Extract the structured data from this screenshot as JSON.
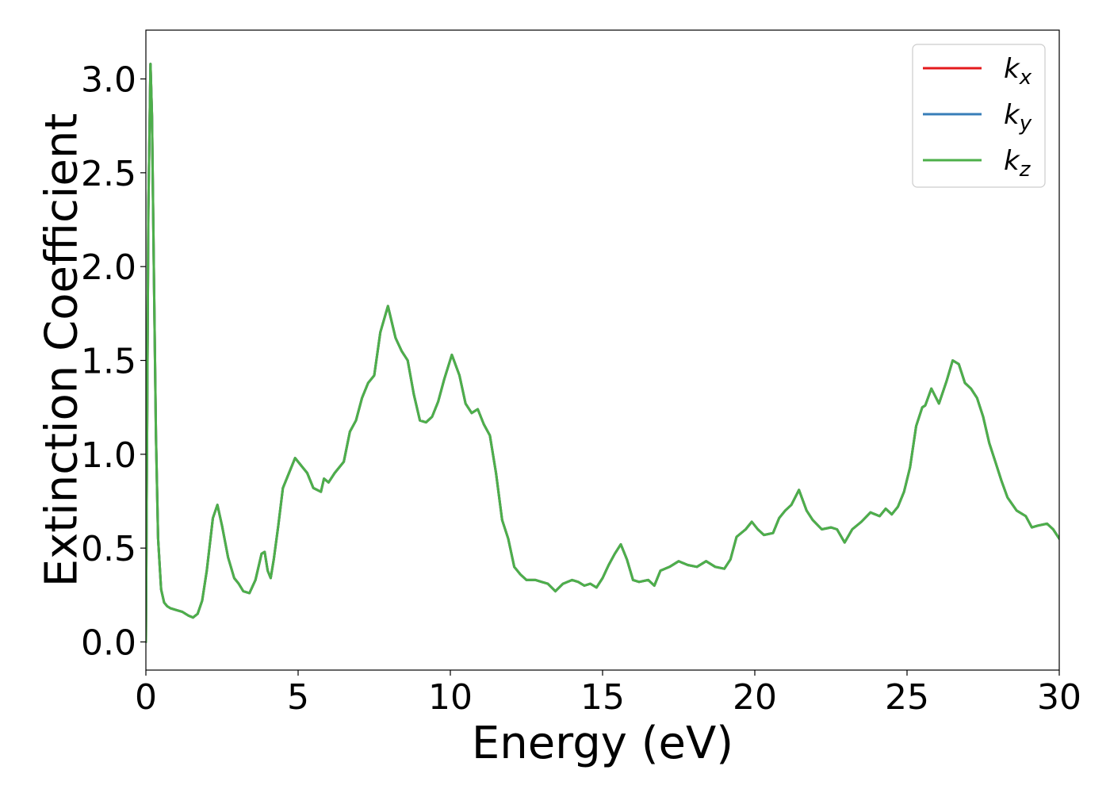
{
  "chart_data": {
    "type": "line",
    "xlabel": "Energy (eV)",
    "ylabel": "Extinction Coefficient",
    "xlim": [
      0,
      30
    ],
    "ylim": [
      -0.15,
      3.26
    ],
    "xticks": [
      0,
      5,
      10,
      15,
      20,
      25,
      30
    ],
    "xtick_labels": [
      "0",
      "5",
      "10",
      "15",
      "20",
      "25",
      "30"
    ],
    "yticks": [
      0.0,
      0.5,
      1.0,
      1.5,
      2.0,
      2.5,
      3.0
    ],
    "ytick_labels": [
      "0.0",
      "0.5",
      "1.0",
      "1.5",
      "2.0",
      "2.5",
      "3.0"
    ],
    "grid": false,
    "legend_position": "top-right",
    "x": [
      0.0,
      0.08,
      0.15,
      0.2,
      0.26,
      0.33,
      0.4,
      0.5,
      0.6,
      0.7,
      0.8,
      1.0,
      1.2,
      1.4,
      1.55,
      1.7,
      1.85,
      2.0,
      2.2,
      2.35,
      2.5,
      2.7,
      2.9,
      3.05,
      3.2,
      3.4,
      3.6,
      3.8,
      3.9,
      4.0,
      4.1,
      4.2,
      4.35,
      4.5,
      4.7,
      4.9,
      5.1,
      5.3,
      5.5,
      5.75,
      5.85,
      6.0,
      6.2,
      6.5,
      6.7,
      6.9,
      7.1,
      7.3,
      7.5,
      7.7,
      7.95,
      8.2,
      8.4,
      8.6,
      8.8,
      9.0,
      9.2,
      9.4,
      9.6,
      9.8,
      10.05,
      10.3,
      10.5,
      10.7,
      10.9,
      11.1,
      11.3,
      11.5,
      11.7,
      11.9,
      12.1,
      12.3,
      12.5,
      12.8,
      13.0,
      13.2,
      13.45,
      13.7,
      14.0,
      14.2,
      14.4,
      14.6,
      14.8,
      15.0,
      15.2,
      15.4,
      15.6,
      15.8,
      16.0,
      16.2,
      16.5,
      16.7,
      16.9,
      17.2,
      17.5,
      17.8,
      18.1,
      18.4,
      18.7,
      19.0,
      19.2,
      19.4,
      19.7,
      19.9,
      20.1,
      20.3,
      20.6,
      20.8,
      21.0,
      21.2,
      21.45,
      21.7,
      21.9,
      22.2,
      22.5,
      22.7,
      22.95,
      23.2,
      23.5,
      23.8,
      24.1,
      24.3,
      24.5,
      24.7,
      24.9,
      25.1,
      25.3,
      25.5,
      25.6,
      25.8,
      26.05,
      26.3,
      26.5,
      26.7,
      26.9,
      27.1,
      27.3,
      27.5,
      27.7,
      27.9,
      28.1,
      28.3,
      28.6,
      28.9,
      29.1,
      29.3,
      29.6,
      29.8,
      30.0
    ],
    "series": [
      {
        "name": "k_x",
        "color": "#e41a1c",
        "width": 3,
        "values": [
          0.0,
          2.3,
          3.08,
          2.8,
          2.0,
          1.1,
          0.55,
          0.28,
          0.21,
          0.19,
          0.18,
          0.17,
          0.16,
          0.14,
          0.13,
          0.15,
          0.22,
          0.38,
          0.66,
          0.73,
          0.62,
          0.45,
          0.34,
          0.31,
          0.27,
          0.26,
          0.33,
          0.47,
          0.48,
          0.38,
          0.34,
          0.44,
          0.62,
          0.82,
          0.9,
          0.98,
          0.94,
          0.9,
          0.82,
          0.8,
          0.87,
          0.85,
          0.9,
          0.96,
          1.12,
          1.18,
          1.3,
          1.38,
          1.42,
          1.65,
          1.79,
          1.62,
          1.55,
          1.5,
          1.32,
          1.18,
          1.17,
          1.2,
          1.28,
          1.4,
          1.53,
          1.42,
          1.27,
          1.22,
          1.24,
          1.16,
          1.1,
          0.9,
          0.65,
          0.55,
          0.4,
          0.36,
          0.33,
          0.33,
          0.32,
          0.31,
          0.27,
          0.31,
          0.33,
          0.32,
          0.3,
          0.31,
          0.29,
          0.34,
          0.41,
          0.47,
          0.52,
          0.44,
          0.33,
          0.32,
          0.33,
          0.3,
          0.38,
          0.4,
          0.43,
          0.41,
          0.4,
          0.43,
          0.4,
          0.39,
          0.44,
          0.56,
          0.6,
          0.64,
          0.6,
          0.57,
          0.58,
          0.66,
          0.7,
          0.73,
          0.81,
          0.7,
          0.65,
          0.6,
          0.61,
          0.6,
          0.53,
          0.6,
          0.64,
          0.69,
          0.67,
          0.71,
          0.68,
          0.72,
          0.8,
          0.93,
          1.15,
          1.25,
          1.26,
          1.35,
          1.27,
          1.39,
          1.5,
          1.48,
          1.38,
          1.35,
          1.3,
          1.2,
          1.06,
          0.96,
          0.86,
          0.77,
          0.7,
          0.67,
          0.61,
          0.62,
          0.63,
          0.6,
          0.55
        ]
      },
      {
        "name": "k_y",
        "color": "#377eb8",
        "width": 3,
        "values": [
          0.0,
          2.3,
          3.08,
          2.8,
          2.0,
          1.1,
          0.55,
          0.28,
          0.21,
          0.19,
          0.18,
          0.17,
          0.16,
          0.14,
          0.13,
          0.15,
          0.22,
          0.38,
          0.66,
          0.73,
          0.62,
          0.45,
          0.34,
          0.31,
          0.27,
          0.26,
          0.33,
          0.47,
          0.48,
          0.38,
          0.34,
          0.44,
          0.62,
          0.82,
          0.9,
          0.98,
          0.94,
          0.9,
          0.82,
          0.8,
          0.87,
          0.85,
          0.9,
          0.96,
          1.12,
          1.18,
          1.3,
          1.38,
          1.42,
          1.65,
          1.79,
          1.62,
          1.55,
          1.5,
          1.32,
          1.18,
          1.17,
          1.2,
          1.28,
          1.4,
          1.53,
          1.42,
          1.27,
          1.22,
          1.24,
          1.16,
          1.1,
          0.9,
          0.65,
          0.55,
          0.4,
          0.36,
          0.33,
          0.33,
          0.32,
          0.31,
          0.27,
          0.31,
          0.33,
          0.32,
          0.3,
          0.31,
          0.29,
          0.34,
          0.41,
          0.47,
          0.52,
          0.44,
          0.33,
          0.32,
          0.33,
          0.3,
          0.38,
          0.4,
          0.43,
          0.41,
          0.4,
          0.43,
          0.4,
          0.39,
          0.44,
          0.56,
          0.6,
          0.64,
          0.6,
          0.57,
          0.58,
          0.66,
          0.7,
          0.73,
          0.81,
          0.7,
          0.65,
          0.6,
          0.61,
          0.6,
          0.53,
          0.6,
          0.64,
          0.69,
          0.67,
          0.71,
          0.68,
          0.72,
          0.8,
          0.93,
          1.15,
          1.25,
          1.26,
          1.35,
          1.27,
          1.39,
          1.5,
          1.48,
          1.38,
          1.35,
          1.3,
          1.2,
          1.06,
          0.96,
          0.86,
          0.77,
          0.7,
          0.67,
          0.61,
          0.62,
          0.63,
          0.6,
          0.55
        ]
      },
      {
        "name": "k_z",
        "color": "#4daf4a",
        "width": 3,
        "values": [
          0.0,
          2.3,
          3.08,
          2.8,
          2.0,
          1.1,
          0.55,
          0.28,
          0.21,
          0.19,
          0.18,
          0.17,
          0.16,
          0.14,
          0.13,
          0.15,
          0.22,
          0.38,
          0.66,
          0.73,
          0.62,
          0.45,
          0.34,
          0.31,
          0.27,
          0.26,
          0.33,
          0.47,
          0.48,
          0.38,
          0.34,
          0.44,
          0.62,
          0.82,
          0.9,
          0.98,
          0.94,
          0.9,
          0.82,
          0.8,
          0.87,
          0.85,
          0.9,
          0.96,
          1.12,
          1.18,
          1.3,
          1.38,
          1.42,
          1.65,
          1.79,
          1.62,
          1.55,
          1.5,
          1.32,
          1.18,
          1.17,
          1.2,
          1.28,
          1.4,
          1.53,
          1.42,
          1.27,
          1.22,
          1.24,
          1.16,
          1.1,
          0.9,
          0.65,
          0.55,
          0.4,
          0.36,
          0.33,
          0.33,
          0.32,
          0.31,
          0.27,
          0.31,
          0.33,
          0.32,
          0.3,
          0.31,
          0.29,
          0.34,
          0.41,
          0.47,
          0.52,
          0.44,
          0.33,
          0.32,
          0.33,
          0.3,
          0.38,
          0.4,
          0.43,
          0.41,
          0.4,
          0.43,
          0.4,
          0.39,
          0.44,
          0.56,
          0.6,
          0.64,
          0.6,
          0.57,
          0.58,
          0.66,
          0.7,
          0.73,
          0.81,
          0.7,
          0.65,
          0.6,
          0.61,
          0.6,
          0.53,
          0.6,
          0.64,
          0.69,
          0.67,
          0.71,
          0.68,
          0.72,
          0.8,
          0.93,
          1.15,
          1.25,
          1.26,
          1.35,
          1.27,
          1.39,
          1.5,
          1.48,
          1.38,
          1.35,
          1.3,
          1.2,
          1.06,
          0.96,
          0.86,
          0.77,
          0.7,
          0.67,
          0.61,
          0.62,
          0.63,
          0.6,
          0.55
        ]
      }
    ],
    "legend": [
      {
        "base": "k",
        "sub": "x",
        "color": "#e41a1c"
      },
      {
        "base": "k",
        "sub": "y",
        "color": "#377eb8"
      },
      {
        "base": "k",
        "sub": "z",
        "color": "#4daf4a"
      }
    ]
  }
}
